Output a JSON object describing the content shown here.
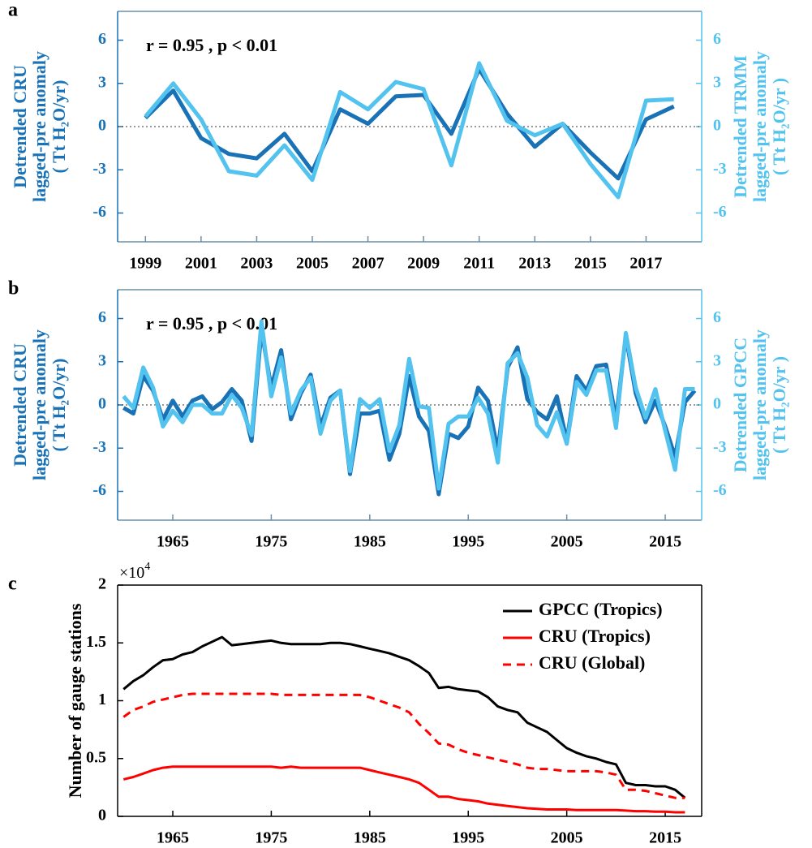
{
  "chart_data": [
    {
      "type": "line",
      "panel_label": "a",
      "annotation": "r = 0.95 , p < 0.01",
      "ylabel": [
        "Detrended CRU",
        "lagged-pre anomaly",
        "( Tt H₂O/yr)"
      ],
      "y2label": [
        "Detrended TRMM",
        "lagged-pre anomaly",
        "( Tt H₂O/yr )"
      ],
      "x": [
        1999,
        2000,
        2001,
        2002,
        2003,
        2004,
        2005,
        2006,
        2007,
        2008,
        2009,
        2010,
        2011,
        2012,
        2013,
        2014,
        2015,
        2016,
        2017,
        2018
      ],
      "series": [
        {
          "color": "#1a72b6",
          "axis": "y",
          "values": [
            0.6,
            2.5,
            -0.8,
            -1.9,
            -2.2,
            -0.5,
            -3.1,
            1.2,
            0.2,
            2.1,
            2.2,
            -0.5,
            4.0,
            0.9,
            -1.4,
            0.2,
            -1.8,
            -3.6,
            0.5,
            1.4
          ]
        },
        {
          "color": "#52c2ef",
          "axis": "y2",
          "values": [
            0.7,
            3.0,
            0.5,
            -3.1,
            -3.4,
            -1.3,
            -3.7,
            2.4,
            1.2,
            3.1,
            2.6,
            -2.7,
            4.4,
            0.4,
            -0.6,
            0.2,
            -2.6,
            -4.9,
            1.8,
            1.9
          ]
        }
      ],
      "xlim": [
        1998,
        2019
      ],
      "xticks": [
        1999,
        2001,
        2003,
        2005,
        2007,
        2009,
        2011,
        2013,
        2015,
        2017
      ],
      "ylim": [
        -8,
        8
      ],
      "yticks": [
        -6,
        -3,
        0,
        3,
        6
      ],
      "y2lim": [
        -8,
        8
      ],
      "y2ticks": [
        -6,
        -3,
        0,
        3,
        6
      ],
      "zero_line": true
    },
    {
      "type": "line",
      "panel_label": "b",
      "annotation": "r = 0.95 , p < 0.01",
      "ylabel": [
        "Detrended CRU",
        "lagged-pre anomaly",
        "( Tt H₂O/yr)"
      ],
      "y2label": [
        "Detrended GPCC",
        "lagged-pre anomaly",
        "( Tt H₂O/yr )"
      ],
      "x": [
        1960,
        1961,
        1962,
        1963,
        1964,
        1965,
        1966,
        1967,
        1968,
        1969,
        1970,
        1971,
        1972,
        1973,
        1974,
        1975,
        1976,
        1977,
        1978,
        1979,
        1980,
        1981,
        1982,
        1983,
        1984,
        1985,
        1986,
        1987,
        1988,
        1989,
        1990,
        1991,
        1992,
        1993,
        1994,
        1995,
        1996,
        1997,
        1998,
        1999,
        2000,
        2001,
        2002,
        2003,
        2004,
        2005,
        2006,
        2007,
        2008,
        2009,
        2010,
        2011,
        2012,
        2013,
        2014,
        2015,
        2016,
        2017,
        2018
      ],
      "series": [
        {
          "color": "#1a72b6",
          "axis": "y",
          "values": [
            -0.2,
            -0.6,
            2.0,
            1.0,
            -1.0,
            0.3,
            -0.8,
            0.3,
            0.6,
            -0.3,
            0.2,
            1.1,
            0.3,
            -2.5,
            5.2,
            1.2,
            3.8,
            -1.0,
            0.8,
            2.1,
            -1.5,
            0.5,
            1.0,
            -4.8,
            -0.6,
            -0.6,
            -0.4,
            -3.8,
            -2.0,
            2.0,
            -0.8,
            -1.8,
            -6.2,
            -2.0,
            -2.3,
            -1.5,
            1.2,
            0.3,
            -3.2,
            2.6,
            4.0,
            0.4,
            -0.5,
            -1.0,
            0.6,
            -2.5,
            2.0,
            1.0,
            2.7,
            2.8,
            -1.0,
            4.8,
            0.8,
            -1.2,
            0.3,
            -1.5,
            -3.6,
            0.2,
            1.0
          ]
        },
        {
          "color": "#52c2ef",
          "axis": "y2",
          "values": [
            0.6,
            -0.2,
            2.6,
            1.2,
            -1.5,
            -0.4,
            -1.2,
            0.0,
            0.0,
            -0.6,
            -0.6,
            0.7,
            -0.2,
            -2.1,
            5.8,
            0.6,
            3.3,
            -0.6,
            1.0,
            1.9,
            -2.0,
            0.3,
            1.0,
            -4.6,
            0.4,
            -0.2,
            0.4,
            -3.2,
            -1.4,
            3.2,
            -0.1,
            -0.2,
            -5.8,
            -1.3,
            -0.8,
            -0.8,
            0.5,
            -0.6,
            -4.0,
            2.9,
            3.6,
            1.9,
            -1.4,
            -2.2,
            -0.5,
            -2.7,
            1.6,
            0.7,
            2.4,
            2.4,
            -1.6,
            5.0,
            1.2,
            -0.9,
            1.1,
            -1.8,
            -4.5,
            1.1,
            1.1
          ]
        }
      ],
      "xlim": [
        1959.4,
        2018.7
      ],
      "xticks": [
        1965,
        1975,
        1985,
        1995,
        2005,
        2015
      ],
      "ylim": [
        -8,
        8
      ],
      "yticks": [
        -6,
        -3,
        0,
        3,
        6
      ],
      "y2lim": [
        -8,
        8
      ],
      "y2ticks": [
        -6,
        -3,
        0,
        3,
        6
      ],
      "zero_line": true
    },
    {
      "type": "line",
      "panel_label": "c",
      "ylabel": [
        "Number of gauge stations"
      ],
      "y_multiplier": "×10",
      "y_multiplier_exponent": "4",
      "legend": "upper right",
      "x": [
        1960,
        1961,
        1962,
        1963,
        1964,
        1965,
        1966,
        1967,
        1968,
        1969,
        1970,
        1971,
        1972,
        1973,
        1974,
        1975,
        1976,
        1977,
        1978,
        1979,
        1980,
        1981,
        1982,
        1983,
        1984,
        1985,
        1986,
        1987,
        1988,
        1989,
        1990,
        1991,
        1992,
        1993,
        1994,
        1995,
        1996,
        1997,
        1998,
        1999,
        2000,
        2001,
        2002,
        2003,
        2004,
        2005,
        2006,
        2007,
        2008,
        2009,
        2010,
        2011,
        2012,
        2013,
        2014,
        2015,
        2016,
        2017
      ],
      "series": [
        {
          "name": "GPCC (Tropics)",
          "color": "#000000",
          "linestyle": "solid",
          "values": [
            1.1,
            1.17,
            1.22,
            1.29,
            1.35,
            1.36,
            1.4,
            1.42,
            1.47,
            1.51,
            1.55,
            1.48,
            1.49,
            1.5,
            1.51,
            1.52,
            1.5,
            1.49,
            1.49,
            1.49,
            1.49,
            1.5,
            1.5,
            1.49,
            1.47,
            1.45,
            1.43,
            1.41,
            1.38,
            1.35,
            1.3,
            1.24,
            1.11,
            1.12,
            1.1,
            1.09,
            1.08,
            1.03,
            0.95,
            0.92,
            0.9,
            0.81,
            0.77,
            0.73,
            0.66,
            0.59,
            0.55,
            0.52,
            0.5,
            0.47,
            0.45,
            0.29,
            0.27,
            0.27,
            0.26,
            0.26,
            0.23,
            0.16
          ]
        },
        {
          "name": "CRU (Tropics)",
          "color": "#ff0000",
          "linestyle": "solid",
          "values": [
            0.32,
            0.34,
            0.37,
            0.4,
            0.42,
            0.43,
            0.43,
            0.43,
            0.43,
            0.43,
            0.43,
            0.43,
            0.43,
            0.43,
            0.43,
            0.43,
            0.42,
            0.43,
            0.42,
            0.42,
            0.42,
            0.42,
            0.42,
            0.42,
            0.42,
            0.4,
            0.38,
            0.36,
            0.34,
            0.32,
            0.29,
            0.23,
            0.17,
            0.17,
            0.15,
            0.14,
            0.13,
            0.11,
            0.1,
            0.09,
            0.08,
            0.07,
            0.065,
            0.06,
            0.06,
            0.06,
            0.055,
            0.055,
            0.055,
            0.055,
            0.055,
            0.05,
            0.045,
            0.045,
            0.04,
            0.04,
            0.035,
            0.035
          ]
        },
        {
          "name": "CRU (Global)",
          "color": "#ff0000",
          "linestyle": "dashed",
          "values": [
            0.86,
            0.92,
            0.95,
            0.99,
            1.01,
            1.03,
            1.05,
            1.06,
            1.06,
            1.06,
            1.06,
            1.06,
            1.06,
            1.06,
            1.06,
            1.06,
            1.05,
            1.05,
            1.05,
            1.05,
            1.05,
            1.05,
            1.05,
            1.05,
            1.05,
            1.03,
            1.0,
            0.97,
            0.94,
            0.9,
            0.8,
            0.72,
            0.63,
            0.62,
            0.58,
            0.55,
            0.53,
            0.51,
            0.49,
            0.47,
            0.45,
            0.42,
            0.41,
            0.41,
            0.4,
            0.39,
            0.39,
            0.39,
            0.39,
            0.38,
            0.36,
            0.23,
            0.23,
            0.22,
            0.2,
            0.18,
            0.16,
            0.16
          ]
        }
      ],
      "xlim": [
        1959.4,
        2018.7
      ],
      "xticks": [
        1965,
        1975,
        1985,
        1995,
        2005,
        2015
      ],
      "ylim": [
        0,
        2
      ],
      "yticks": [
        0,
        0.5,
        1,
        1.5,
        2
      ]
    }
  ]
}
